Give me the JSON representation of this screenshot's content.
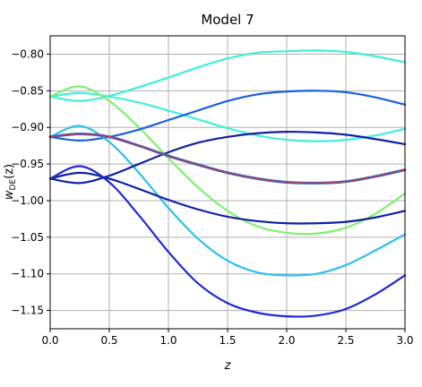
{
  "chart_data": {
    "type": "line",
    "title": "Model 7",
    "xlabel": "z",
    "ylabel": "w_DE(z)",
    "ylabel_main": "w",
    "ylabel_sub": "DE",
    "ylabel_arg": "(z)",
    "xlim": [
      0.0,
      3.0
    ],
    "ylim": [
      -1.175,
      -0.775
    ],
    "grid": true,
    "x_ticks": [
      0.0,
      0.5,
      1.0,
      1.5,
      2.0,
      2.5,
      3.0
    ],
    "x_tick_labels": [
      "0.0",
      "0.5",
      "1.0",
      "1.5",
      "2.0",
      "2.5",
      "3.0"
    ],
    "y_ticks": [
      -0.8,
      -0.85,
      -0.9,
      -0.95,
      -1.0,
      -1.05,
      -1.1,
      -1.15
    ],
    "y_tick_labels": [
      "−0.80",
      "−0.85",
      "−0.90",
      "−0.95",
      "−1.00",
      "−1.05",
      "−1.10",
      "−1.15"
    ],
    "x": [
      0.0,
      0.25,
      0.5,
      0.75,
      1.0,
      1.25,
      1.5,
      1.75,
      2.0,
      2.25,
      2.5,
      2.75,
      3.0
    ],
    "series": [
      {
        "color": "#40f0d8",
        "width": 2.2,
        "values": [
          -0.858,
          -0.864,
          -0.857,
          -0.845,
          -0.832,
          -0.818,
          -0.806,
          -0.798,
          -0.796,
          -0.795,
          -0.797,
          -0.803,
          -0.811
        ]
      },
      {
        "color": "#40f0d8",
        "width": 2.2,
        "values": [
          -0.858,
          -0.853,
          -0.858,
          -0.866,
          -0.877,
          -0.889,
          -0.901,
          -0.911,
          -0.917,
          -0.919,
          -0.917,
          -0.911,
          -0.902
        ]
      },
      {
        "color": "#80f070",
        "width": 2.2,
        "values": [
          -0.858,
          -0.844,
          -0.864,
          -0.9,
          -0.942,
          -0.982,
          -1.014,
          -1.035,
          -1.044,
          -1.045,
          -1.037,
          -1.018,
          -0.99
        ]
      },
      {
        "color": "#1a5ee0",
        "width": 2.2,
        "values": [
          -0.913,
          -0.918,
          -0.913,
          -0.903,
          -0.89,
          -0.877,
          -0.864,
          -0.855,
          -0.851,
          -0.85,
          -0.852,
          -0.859,
          -0.869
        ]
      },
      {
        "color": "#2ec0f0",
        "width": 2.2,
        "values": [
          -0.913,
          -0.898,
          -0.92,
          -0.962,
          -1.01,
          -1.052,
          -1.082,
          -1.098,
          -1.102,
          -1.1,
          -1.088,
          -1.068,
          -1.046
        ]
      },
      {
        "color": "#1020a0",
        "width": 2.2,
        "values": [
          -0.97,
          -0.976,
          -0.966,
          -0.95,
          -0.934,
          -0.921,
          -0.913,
          -0.908,
          -0.906,
          -0.907,
          -0.91,
          -0.916,
          -0.923
        ]
      },
      {
        "color": "#1020a0",
        "width": 2.2,
        "values": [
          -0.97,
          -0.962,
          -0.97,
          -0.984,
          -0.999,
          -1.012,
          -1.022,
          -1.028,
          -1.031,
          -1.031,
          -1.029,
          -1.023,
          -1.014
        ]
      },
      {
        "color": "#1e28d8",
        "width": 2.2,
        "values": [
          -0.97,
          -0.953,
          -0.975,
          -1.02,
          -1.07,
          -1.113,
          -1.14,
          -1.153,
          -1.158,
          -1.157,
          -1.148,
          -1.128,
          -1.102
        ]
      },
      {
        "color": "#1e6ad8",
        "width": 3.0,
        "values": [
          -0.913,
          -0.909,
          -0.913,
          -0.925,
          -0.939,
          -0.951,
          -0.962,
          -0.97,
          -0.975,
          -0.976,
          -0.974,
          -0.967,
          -0.958
        ]
      },
      {
        "color": "#e03030",
        "width": 1.6,
        "dash": "4,3",
        "values": [
          -0.913,
          -0.909,
          -0.913,
          -0.925,
          -0.939,
          -0.951,
          -0.962,
          -0.97,
          -0.975,
          -0.976,
          -0.974,
          -0.967,
          -0.958
        ]
      }
    ]
  }
}
